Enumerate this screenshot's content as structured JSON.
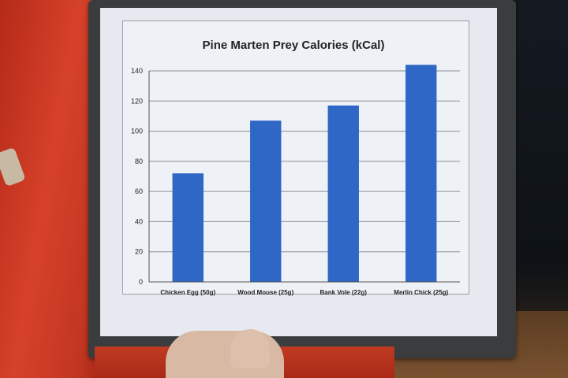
{
  "chart_data": {
    "type": "bar",
    "title": "Pine Marten Prey Calories (kCal)",
    "xlabel": "",
    "ylabel": "",
    "categories": [
      "Chicken Egg (50g)",
      "Wood Mouse (25g)",
      "Bank Vole (22g)",
      "Merlin Chick (25g)"
    ],
    "values": [
      72,
      107,
      117,
      144
    ],
    "ylim": [
      0,
      140
    ],
    "yticks": [
      0,
      20,
      40,
      60,
      80,
      100,
      120,
      140
    ],
    "grid": true,
    "legend": "none",
    "bar_color": "#2f67c6"
  }
}
